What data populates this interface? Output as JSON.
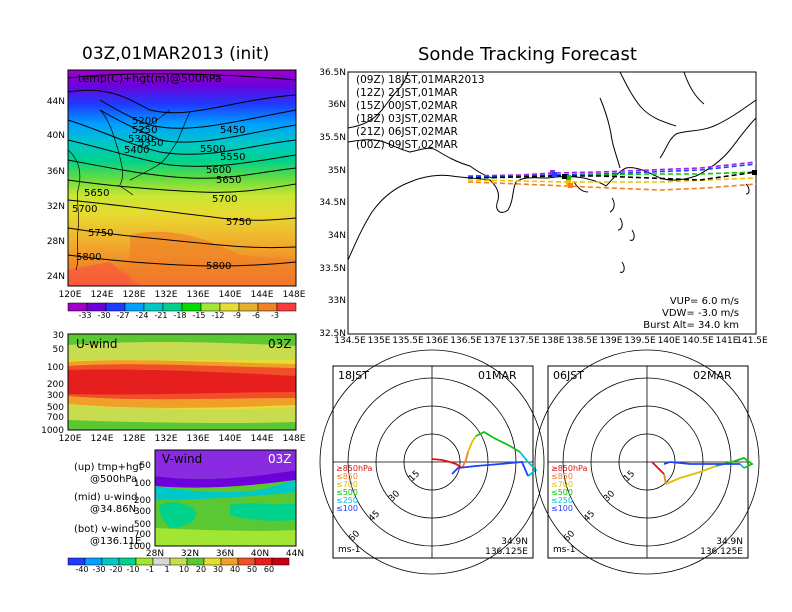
{
  "left_title": "03Z,01MAR2013 (init)",
  "right_title": "Sonde Tracking Forecast",
  "map_panel": {
    "label": "temp(C)+hgt(m)@500hPa",
    "lat_ticks": [
      "44N",
      "40N",
      "36N",
      "32N",
      "28N",
      "24N"
    ],
    "lon_ticks": [
      "120E",
      "124E",
      "128E",
      "132E",
      "136E",
      "140E",
      "144E",
      "148E"
    ],
    "contour_labels": [
      "5200",
      "5250",
      "5300",
      "5350",
      "5400",
      "5450",
      "5500",
      "5550",
      "5600",
      "5650",
      "5650",
      "5700",
      "5700",
      "5750",
      "5750",
      "5800",
      "5800"
    ],
    "colorbar_ticks": [
      "-33",
      "-30",
      "-27",
      "-24",
      "-21",
      "-18",
      "-15",
      "-12",
      "-9",
      "-6",
      "-3"
    ],
    "colorbar_colors": [
      "#a000c8",
      "#6e00dc",
      "#1e3cff",
      "#00a0ff",
      "#00c8c8",
      "#00d28c",
      "#00dc00",
      "#a0e632",
      "#e6dc32",
      "#e6af2d",
      "#f08228",
      "#fa3c3c"
    ]
  },
  "uwind_panel": {
    "label": "U-wind",
    "time": "03Z",
    "y_ticks": [
      "30",
      "50",
      "100",
      "200",
      "300",
      "500",
      "700",
      "1000"
    ],
    "x_ticks": [
      "120E",
      "124E",
      "128E",
      "132E",
      "136E",
      "140E",
      "144E",
      "148E"
    ]
  },
  "vwind_panel": {
    "label": "V-wind",
    "time": "03Z",
    "y_ticks": [
      "50",
      "100",
      "200",
      "300",
      "500",
      "700",
      "1000"
    ],
    "x_ticks": [
      "28N",
      "32N",
      "36N",
      "40N",
      "44N"
    ]
  },
  "side_legend": {
    "up_line1": "(up) tmp+hgt",
    "up_line2": "@500hPa",
    "mid_line1": "(mid) u-wind",
    "mid_line2": "@34.86N",
    "bot_line1": "(bot) v-wind",
    "bot_line2": "@136.11E"
  },
  "wind_colorbar": {
    "ticks": [
      "-40",
      "-30",
      "-20",
      "-10",
      "-1",
      "1",
      "10",
      "20",
      "30",
      "40",
      "50",
      "60"
    ],
    "colors": [
      "#1e3cff",
      "#00a0ff",
      "#00c8c8",
      "#00d28c",
      "#a0e632",
      "#d8d8d8",
      "#c8dc50",
      "#5ac832",
      "#e6dc32",
      "#f0a028",
      "#f05028",
      "#e61e1e",
      "#c80014"
    ]
  },
  "tracking": {
    "lat_ticks": [
      "36.5N",
      "36N",
      "35.5N",
      "35N",
      "34.5N",
      "34N",
      "33.5N",
      "33N",
      "32.5N"
    ],
    "lon_ticks": [
      "134.5E",
      "135E",
      "135.5E",
      "136E",
      "136.5E",
      "137E",
      "137.5E",
      "138E",
      "138.5E",
      "139E",
      "139.5E",
      "140E",
      "140.5E",
      "141E",
      "141.5E"
    ],
    "legend": [
      {
        "label": "(09Z)  18JST,01MAR2013",
        "color": "#000000"
      },
      {
        "label": "(12Z)  21JST,01MAR",
        "color": "#a020f0"
      },
      {
        "label": "(15Z)  00JST,02MAR",
        "color": "#2040ff"
      },
      {
        "label": "(18Z)  03JST,02MAR",
        "color": "#10c010"
      },
      {
        "label": "(21Z)  06JST,02MAR",
        "color": "#f0c000"
      },
      {
        "label": "(00Z)  09JST,02MAR",
        "color": "#f08020"
      }
    ],
    "info_vup": "VUP=  6.0  m/s",
    "info_vdw": "VDW= -3.0  m/s",
    "info_burst": "Burst Alt= 34.0  km"
  },
  "hodo_left": {
    "time": "18JST",
    "date": "01MAR",
    "ring_labels": [
      "15",
      "30",
      "45",
      "60"
    ],
    "legend": [
      "≥850hPa",
      "≤850",
      "≤700",
      "≤500",
      "≤250",
      "≤100"
    ],
    "legend_colors": [
      "#e01010",
      "#f08020",
      "#e0c000",
      "#10c010",
      "#00c0e0",
      "#2040ff"
    ],
    "unit": "ms-1",
    "lat": "34.9N",
    "lon": "136.125E"
  },
  "hodo_right": {
    "time": "06JST",
    "date": "02MAR",
    "ring_labels": [
      "15",
      "30",
      "45",
      "60"
    ],
    "legend": [
      "≥850hPa",
      "≤850",
      "≤700",
      "≤500",
      "≤250",
      "≤100"
    ],
    "legend_colors": [
      "#e01010",
      "#f08020",
      "#e0c000",
      "#10c010",
      "#00c0e0",
      "#2040ff"
    ],
    "unit": "ms-1",
    "lat": "34.9N",
    "lon": "136.125E"
  }
}
